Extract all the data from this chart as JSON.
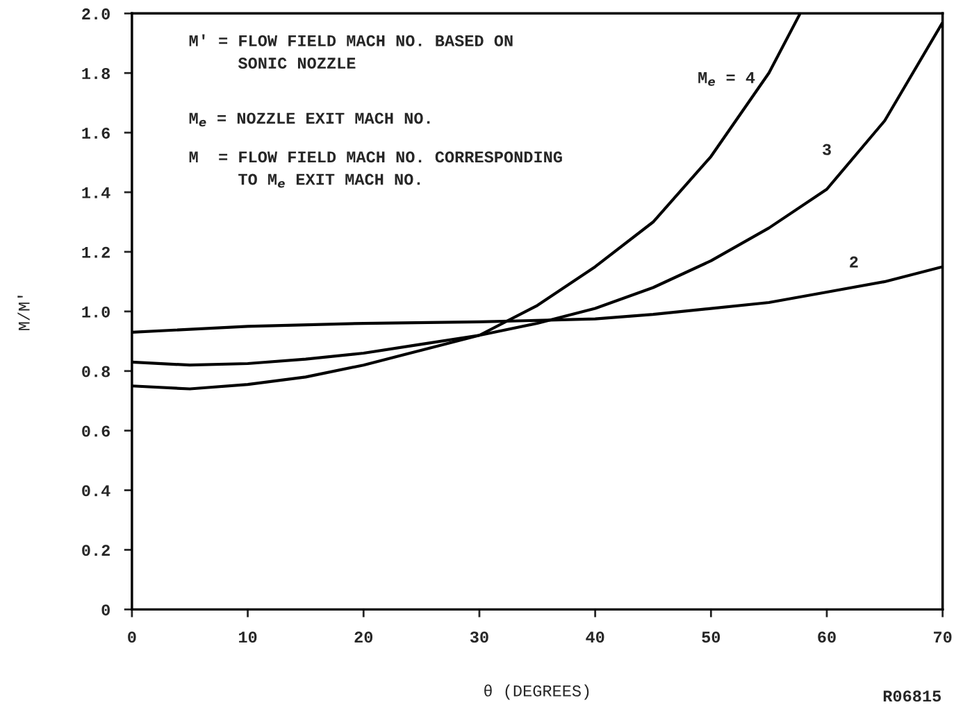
{
  "chart_data": {
    "type": "line",
    "xlabel": "θ (DEGREES)",
    "ylabel": "M/M'",
    "xlim": [
      0,
      70
    ],
    "ylim": [
      0,
      2
    ],
    "xticks": [
      0,
      10,
      20,
      30,
      40,
      50,
      60,
      70
    ],
    "yticks": [
      0,
      {
        "value": 0.2,
        "label": "0.2"
      },
      {
        "value": 0.4,
        "label": "0.4"
      },
      {
        "value": 0.6,
        "label": "0.6"
      },
      {
        "value": 0.8,
        "label": "0.8"
      },
      {
        "value": 1,
        "label": "1.0"
      },
      {
        "value": 1.2,
        "label": "1.2"
      },
      {
        "value": 1.4,
        "label": "1.4"
      },
      {
        "value": 1.6,
        "label": "1.6"
      },
      {
        "value": 1.8,
        "label": "1.8"
      },
      {
        "value": 2,
        "label": "2.0"
      }
    ],
    "grid": false,
    "legend": false,
    "marker": "none",
    "line_style": "solid",
    "series": [
      {
        "name": "M$_{e}$ = 4",
        "color": "#000000",
        "x": [
          0,
          5,
          10,
          15,
          20,
          25,
          30,
          35,
          40,
          45,
          50,
          55,
          57.7
        ],
        "values": [
          0.75,
          0.74,
          0.755,
          0.78,
          0.82,
          0.87,
          0.92,
          1.02,
          1.15,
          1.3,
          1.52,
          1.8,
          2.0
        ]
      },
      {
        "name": "3",
        "color": "#000000",
        "x": [
          0,
          5,
          10,
          15,
          20,
          25,
          30,
          35,
          40,
          45,
          50,
          55,
          60,
          65,
          70
        ],
        "values": [
          0.83,
          0.82,
          0.825,
          0.84,
          0.86,
          0.89,
          0.92,
          0.96,
          1.01,
          1.08,
          1.17,
          1.28,
          1.41,
          1.64,
          1.97
        ]
      },
      {
        "name": "2",
        "color": "#000000",
        "x": [
          0,
          10,
          20,
          30,
          40,
          45,
          50,
          55,
          60,
          65,
          70
        ],
        "values": [
          0.93,
          0.95,
          0.96,
          0.965,
          0.975,
          0.99,
          1.01,
          1.03,
          1.065,
          1.1,
          1.15
        ]
      }
    ],
    "annotations": [
      "M' = FLOW FIELD MACH NO. BASED ON\n     SONIC NOZZLE",
      "M$_{e}$ = NOZZLE EXIT MACH NO.",
      "M  = FLOW FIELD MACH NO. CORRESPONDING\n     TO M$_{e}$ EXIT MACH NO.",
      "R06815"
    ]
  }
}
